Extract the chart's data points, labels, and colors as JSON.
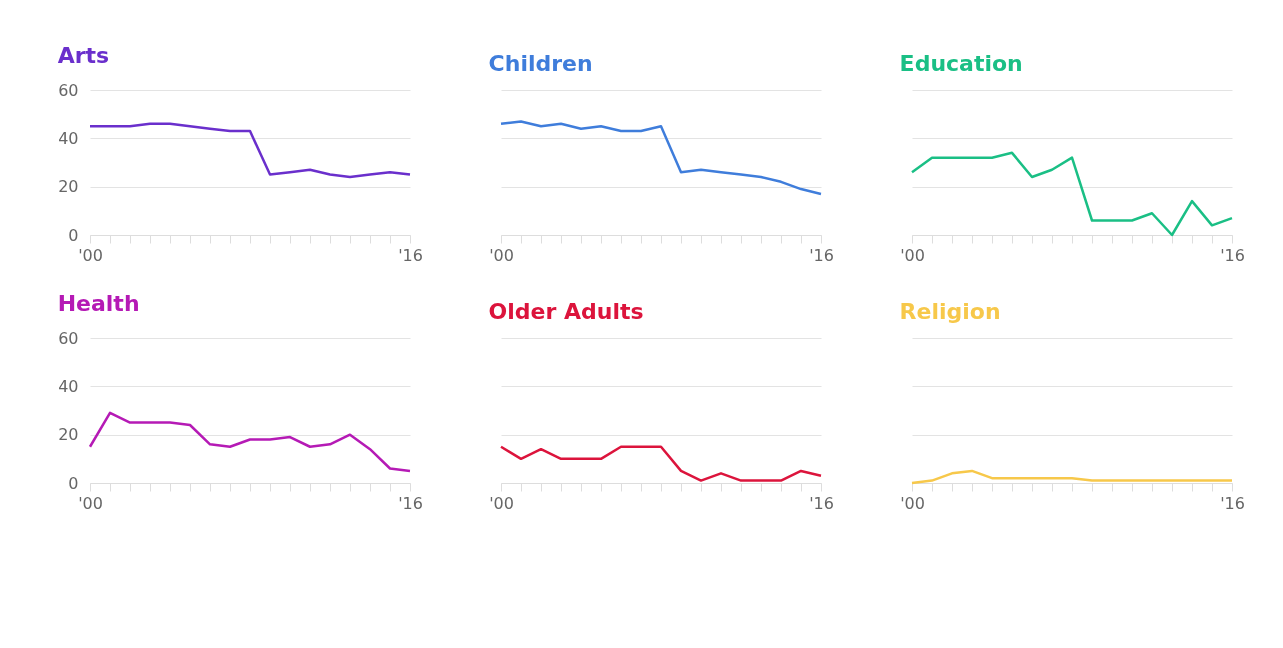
{
  "chart_data": [
    {
      "type": "line",
      "title": "Arts",
      "x": [
        2000,
        2001,
        2002,
        2003,
        2004,
        2005,
        2006,
        2007,
        2008,
        2009,
        2010,
        2011,
        2012,
        2013,
        2014,
        2015,
        2016
      ],
      "series": [
        {
          "color": "#6a2fcc",
          "values": [
            45,
            45,
            45,
            46,
            46,
            45,
            44,
            43,
            43,
            25,
            26,
            27,
            25,
            24,
            25,
            26,
            25
          ]
        }
      ],
      "xlim": [
        2000,
        2016
      ],
      "xticks": [
        {
          "value": 2000,
          "label": "'00"
        },
        {
          "value": 2001,
          "label": null
        },
        {
          "value": 2002,
          "label": null
        },
        {
          "value": 2003,
          "label": null
        },
        {
          "value": 2004,
          "label": null
        },
        {
          "value": 2005,
          "label": null
        },
        {
          "value": 2006,
          "label": null
        },
        {
          "value": 2007,
          "label": null
        },
        {
          "value": 2008,
          "label": null
        },
        {
          "value": 2009,
          "label": null
        },
        {
          "value": 2010,
          "label": null
        },
        {
          "value": 2011,
          "label": null
        },
        {
          "value": 2012,
          "label": null
        },
        {
          "value": 2013,
          "label": null
        },
        {
          "value": 2014,
          "label": null
        },
        {
          "value": 2015,
          "label": null
        },
        {
          "value": 2016,
          "label": "'16"
        }
      ],
      "ylim": [
        0,
        60
      ],
      "yticks": [
        0,
        20,
        40,
        60
      ],
      "grid": "y"
    },
    {
      "type": "line",
      "title": "Children",
      "x": [
        2000,
        2001,
        2002,
        2003,
        2004,
        2005,
        2006,
        2007,
        2008,
        2009,
        2010,
        2011,
        2012,
        2013,
        2014,
        2015,
        2016
      ],
      "series": [
        {
          "color": "#3f7ddb",
          "values": [
            46,
            47,
            45,
            46,
            44,
            45,
            43,
            43,
            45,
            26,
            27,
            26,
            25,
            24,
            22,
            19,
            17
          ]
        }
      ],
      "xlim": [
        2000,
        2016
      ],
      "xticks": [
        {
          "value": 2000,
          "label": "'00"
        },
        {
          "value": 2001,
          "label": null
        },
        {
          "value": 2002,
          "label": null
        },
        {
          "value": 2003,
          "label": null
        },
        {
          "value": 2004,
          "label": null
        },
        {
          "value": 2005,
          "label": null
        },
        {
          "value": 2006,
          "label": null
        },
        {
          "value": 2007,
          "label": null
        },
        {
          "value": 2008,
          "label": null
        },
        {
          "value": 2009,
          "label": null
        },
        {
          "value": 2010,
          "label": null
        },
        {
          "value": 2011,
          "label": null
        },
        {
          "value": 2012,
          "label": null
        },
        {
          "value": 2013,
          "label": null
        },
        {
          "value": 2014,
          "label": null
        },
        {
          "value": 2015,
          "label": null
        },
        {
          "value": 2016,
          "label": "'16"
        }
      ],
      "ylim": [
        0,
        60
      ],
      "yticks": [
        0,
        20,
        40,
        60
      ],
      "grid": "y",
      "tick_labels": "x"
    },
    {
      "type": "line",
      "title": "Education",
      "x": [
        2000,
        2001,
        2002,
        2003,
        2004,
        2005,
        2006,
        2007,
        2008,
        2009,
        2010,
        2011,
        2012,
        2013,
        2014,
        2015,
        2016
      ],
      "series": [
        {
          "color": "#1abf85",
          "values": [
            26,
            32,
            32,
            32,
            32,
            34,
            24,
            27,
            32,
            6,
            6,
            6,
            9,
            0,
            14,
            4,
            7
          ]
        }
      ],
      "xlim": [
        2000,
        2016
      ],
      "xticks": [
        {
          "value": 2000,
          "label": "'00"
        },
        {
          "value": 2001,
          "label": null
        },
        {
          "value": 2002,
          "label": null
        },
        {
          "value": 2003,
          "label": null
        },
        {
          "value": 2004,
          "label": null
        },
        {
          "value": 2005,
          "label": null
        },
        {
          "value": 2006,
          "label": null
        },
        {
          "value": 2007,
          "label": null
        },
        {
          "value": 2008,
          "label": null
        },
        {
          "value": 2009,
          "label": null
        },
        {
          "value": 2010,
          "label": null
        },
        {
          "value": 2011,
          "label": null
        },
        {
          "value": 2012,
          "label": null
        },
        {
          "value": 2013,
          "label": null
        },
        {
          "value": 2014,
          "label": null
        },
        {
          "value": 2015,
          "label": null
        },
        {
          "value": 2016,
          "label": "'16"
        }
      ],
      "ylim": [
        0,
        60
      ],
      "yticks": [
        0,
        20,
        40,
        60
      ],
      "grid": "y",
      "tick_labels": "x"
    },
    {
      "type": "line",
      "title": "Health",
      "x": [
        2000,
        2001,
        2002,
        2003,
        2004,
        2005,
        2006,
        2007,
        2008,
        2009,
        2010,
        2011,
        2012,
        2013,
        2014,
        2015,
        2016
      ],
      "series": [
        {
          "color": "#b51ab5",
          "values": [
            15,
            29,
            25,
            25,
            25,
            24,
            16,
            15,
            18,
            18,
            19,
            15,
            16,
            20,
            14,
            6,
            5
          ]
        }
      ],
      "xlim": [
        2000,
        2016
      ],
      "xticks": [
        {
          "value": 2000,
          "label": "'00"
        },
        {
          "value": 2001,
          "label": null
        },
        {
          "value": 2002,
          "label": null
        },
        {
          "value": 2003,
          "label": null
        },
        {
          "value": 2004,
          "label": null
        },
        {
          "value": 2005,
          "label": null
        },
        {
          "value": 2006,
          "label": null
        },
        {
          "value": 2007,
          "label": null
        },
        {
          "value": 2008,
          "label": null
        },
        {
          "value": 2009,
          "label": null
        },
        {
          "value": 2010,
          "label": null
        },
        {
          "value": 2011,
          "label": null
        },
        {
          "value": 2012,
          "label": null
        },
        {
          "value": 2013,
          "label": null
        },
        {
          "value": 2014,
          "label": null
        },
        {
          "value": 2015,
          "label": null
        },
        {
          "value": 2016,
          "label": "'16"
        }
      ],
      "ylim": [
        0,
        60
      ],
      "yticks": [
        0,
        20,
        40,
        60
      ],
      "grid": "y"
    },
    {
      "type": "line",
      "title": "Older Adults",
      "x": [
        2000,
        2001,
        2002,
        2003,
        2004,
        2005,
        2006,
        2007,
        2008,
        2009,
        2010,
        2011,
        2012,
        2013,
        2014,
        2015,
        2016
      ],
      "series": [
        {
          "color": "#dc143c",
          "values": [
            15,
            10,
            14,
            10,
            10,
            10,
            15,
            15,
            15,
            5,
            1,
            4,
            1,
            1,
            1,
            5,
            3
          ]
        }
      ],
      "xlim": [
        2000,
        2016
      ],
      "xticks": [
        {
          "value": 2000,
          "label": "'00"
        },
        {
          "value": 2001,
          "label": null
        },
        {
          "value": 2002,
          "label": null
        },
        {
          "value": 2003,
          "label": null
        },
        {
          "value": 2004,
          "label": null
        },
        {
          "value": 2005,
          "label": null
        },
        {
          "value": 2006,
          "label": null
        },
        {
          "value": 2007,
          "label": null
        },
        {
          "value": 2008,
          "label": null
        },
        {
          "value": 2009,
          "label": null
        },
        {
          "value": 2010,
          "label": null
        },
        {
          "value": 2011,
          "label": null
        },
        {
          "value": 2012,
          "label": null
        },
        {
          "value": 2013,
          "label": null
        },
        {
          "value": 2014,
          "label": null
        },
        {
          "value": 2015,
          "label": null
        },
        {
          "value": 2016,
          "label": "'16"
        }
      ],
      "ylim": [
        0,
        60
      ],
      "yticks": [
        0,
        20,
        40,
        60
      ],
      "grid": "y",
      "tick_labels": "x"
    },
    {
      "type": "line",
      "title": "Religion",
      "x": [
        2000,
        2001,
        2002,
        2003,
        2004,
        2005,
        2006,
        2007,
        2008,
        2009,
        2010,
        2011,
        2012,
        2013,
        2014,
        2015,
        2016
      ],
      "series": [
        {
          "color": "#f7c84a",
          "values": [
            0,
            1,
            4,
            5,
            2,
            2,
            2,
            2,
            2,
            1,
            1,
            1,
            1,
            1,
            1,
            1,
            1
          ]
        }
      ],
      "xlim": [
        2000,
        2016
      ],
      "xticks": [
        {
          "value": 2000,
          "label": "'00"
        },
        {
          "value": 2001,
          "label": null
        },
        {
          "value": 2002,
          "label": null
        },
        {
          "value": 2003,
          "label": null
        },
        {
          "value": 2004,
          "label": null
        },
        {
          "value": 2005,
          "label": null
        },
        {
          "value": 2006,
          "label": null
        },
        {
          "value": 2007,
          "label": null
        },
        {
          "value": 2008,
          "label": null
        },
        {
          "value": 2009,
          "label": null
        },
        {
          "value": 2010,
          "label": null
        },
        {
          "value": 2011,
          "label": null
        },
        {
          "value": 2012,
          "label": null
        },
        {
          "value": 2013,
          "label": null
        },
        {
          "value": 2014,
          "label": null
        },
        {
          "value": 2015,
          "label": null
        },
        {
          "value": 2016,
          "label": "'16"
        }
      ],
      "ylim": [
        0,
        60
      ],
      "yticks": [
        0,
        20,
        40,
        60
      ],
      "grid": "y",
      "tick_labels": "x"
    }
  ]
}
